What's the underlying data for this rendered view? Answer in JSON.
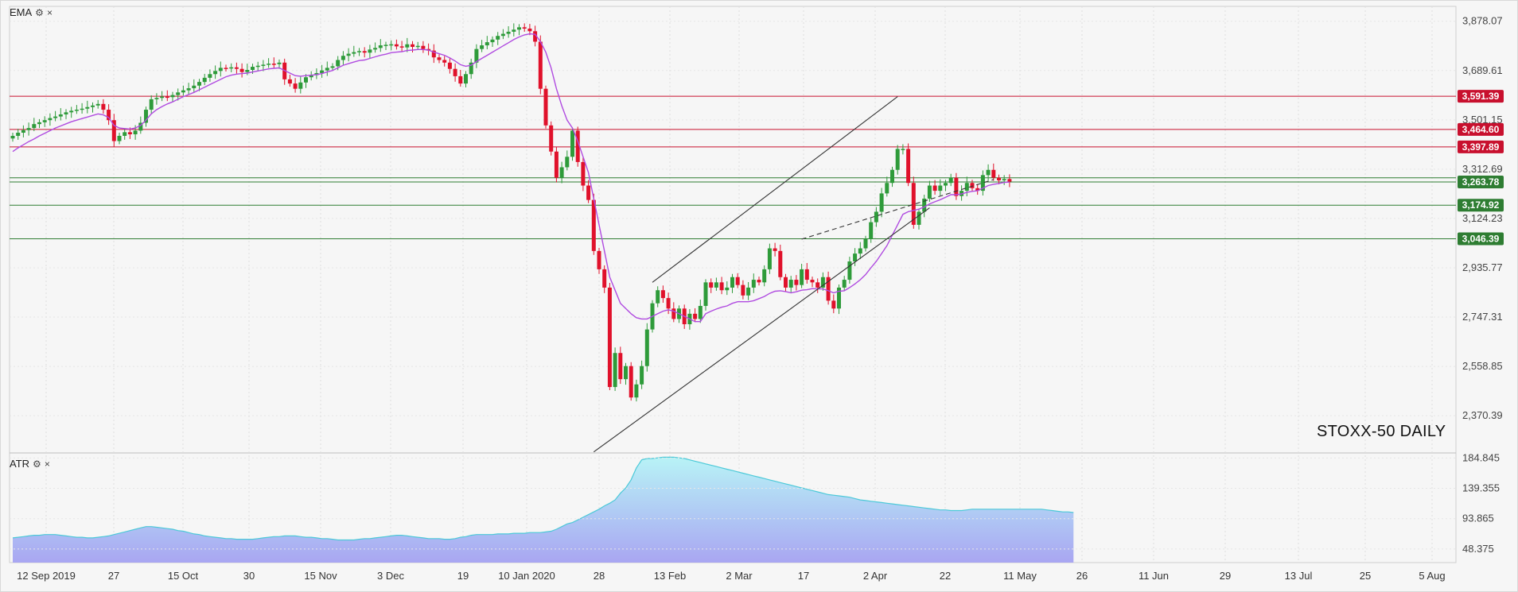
{
  "upper_indicator": {
    "label": "EMA",
    "settings_glyph": "⚙",
    "close_glyph": "×"
  },
  "lower_indicator": {
    "label": "ATR",
    "settings_glyph": "⚙",
    "close_glyph": "×"
  },
  "watermark": "STOXX-50 DAILY",
  "colors": {
    "up": "#2e9b3a",
    "down": "#e0112b",
    "ema": "#b04be0",
    "resistance": "#c8102e",
    "support": "#2e7d32",
    "atr_line": "#4cc9d8"
  },
  "chart_data": [
    {
      "type": "candlestick",
      "title": "STOXX-50 DAILY",
      "ylim": [
        2228,
        3935
      ],
      "y_ticks": [
        "3,878.07",
        "3,689.61",
        "3,501.15",
        "3,312.69",
        "3,124.23",
        "2,935.77",
        "2,747.31",
        "2,558.85",
        "2,370.39"
      ],
      "x_tick_labels": [
        "12 Sep 2019",
        "27",
        "15 Oct",
        "30",
        "15 Nov",
        "3 Dec",
        "19",
        "10 Jan 2020",
        "28",
        "13 Feb",
        "2 Mar",
        "17",
        "2 Apr",
        "22",
        "11 May",
        "26",
        "11 Jun",
        "29",
        "13 Jul",
        "25",
        "5 Aug"
      ],
      "horizontal_levels": [
        {
          "value": 3591.39,
          "label": "3,591.39",
          "kind": "resistance"
        },
        {
          "value": 3464.6,
          "label": "3,464.60",
          "kind": "resistance"
        },
        {
          "value": 3397.89,
          "label": "3,397.89",
          "kind": "resistance"
        },
        {
          "value": 3279.8,
          "label": "",
          "kind": "support"
        },
        {
          "value": 3263.78,
          "label": "3,263.78",
          "kind": "support"
        },
        {
          "value": 3174.92,
          "label": "3,174.92",
          "kind": "support"
        },
        {
          "value": 3046.39,
          "label": "3,046.39",
          "kind": "support"
        }
      ],
      "channel": {
        "upper": [
          [
            120,
            2880
          ],
          [
            166,
            3590
          ]
        ],
        "lower": [
          [
            109,
            2232
          ],
          [
            172,
            3165
          ]
        ],
        "inner_dashed": [
          [
            148,
            3045
          ],
          [
            184,
            3273
          ]
        ]
      },
      "closes": [
        3440,
        3452,
        3462,
        3470,
        3485,
        3492,
        3500,
        3508,
        3514,
        3522,
        3530,
        3536,
        3540,
        3544,
        3550,
        3556,
        3562,
        3540,
        3500,
        3420,
        3440,
        3454,
        3446,
        3460,
        3490,
        3540,
        3580,
        3585,
        3590,
        3588,
        3596,
        3606,
        3614,
        3622,
        3632,
        3646,
        3662,
        3676,
        3688,
        3700,
        3698,
        3702,
        3696,
        3684,
        3692,
        3704,
        3708,
        3712,
        3716,
        3714,
        3720,
        3656,
        3640,
        3620,
        3644,
        3664,
        3672,
        3680,
        3690,
        3700,
        3706,
        3730,
        3746,
        3754,
        3760,
        3764,
        3758,
        3770,
        3776,
        3786,
        3788,
        3790,
        3782,
        3778,
        3790,
        3780,
        3784,
        3772,
        3766,
        3740,
        3730,
        3720,
        3696,
        3668,
        3640,
        3676,
        3720,
        3772,
        3786,
        3798,
        3808,
        3822,
        3830,
        3838,
        3846,
        3855,
        3850,
        3840,
        3800,
        3620,
        3480,
        3380,
        3280,
        3320,
        3360,
        3460,
        3340,
        3250,
        3195,
        3000,
        2930,
        2860,
        2480,
        2610,
        2510,
        2560,
        2440,
        2490,
        2560,
        2700,
        2800,
        2850,
        2820,
        2780,
        2740,
        2780,
        2720,
        2760,
        2740,
        2790,
        2880,
        2860,
        2880,
        2850,
        2860,
        2900,
        2870,
        2830,
        2860,
        2890,
        2880,
        2930,
        3010,
        3000,
        2900,
        2860,
        2890,
        2870,
        2930,
        2890,
        2880,
        2860,
        2900,
        2810,
        2780,
        2860,
        2890,
        2960,
        2990,
        3010,
        3046,
        3110,
        3150,
        3220,
        3260,
        3310,
        3390,
        3390,
        3260,
        3100,
        3150,
        3200,
        3250,
        3230,
        3250,
        3260,
        3280,
        3210,
        3230,
        3260,
        3240,
        3230,
        3290,
        3310,
        3280,
        3270,
        3275,
        3265
      ],
      "ema": [
        3380,
        3394,
        3406,
        3418,
        3428,
        3440,
        3450,
        3460,
        3470,
        3478,
        3486,
        3494,
        3500,
        3506,
        3512,
        3518,
        3524,
        3520,
        3510,
        3480,
        3470,
        3468,
        3466,
        3470,
        3480,
        3500,
        3524,
        3540,
        3552,
        3562,
        3570,
        3580,
        3590,
        3598,
        3606,
        3616,
        3626,
        3636,
        3646,
        3656,
        3666,
        3672,
        3676,
        3678,
        3680,
        3684,
        3688,
        3692,
        3696,
        3698,
        3700,
        3690,
        3680,
        3670,
        3668,
        3670,
        3672,
        3674,
        3678,
        3684,
        3690,
        3700,
        3710,
        3716,
        3722,
        3728,
        3730,
        3736,
        3742,
        3748,
        3752,
        3758,
        3760,
        3762,
        3766,
        3768,
        3770,
        3770,
        3768,
        3760,
        3754,
        3748,
        3738,
        3726,
        3712,
        3706,
        3710,
        3724,
        3736,
        3748,
        3760,
        3772,
        3784,
        3796,
        3808,
        3818,
        3826,
        3830,
        3828,
        3800,
        3760,
        3700,
        3620,
        3555,
        3500,
        3470,
        3420,
        3360,
        3300,
        3200,
        3100,
        3000,
        2900,
        2850,
        2800,
        2780,
        2760,
        2745,
        2740,
        2740,
        2750,
        2760,
        2770,
        2775,
        2770,
        2760,
        2750,
        2740,
        2730,
        2730,
        2760,
        2770,
        2778,
        2785,
        2790,
        2800,
        2806,
        2806,
        2806,
        2810,
        2818,
        2826,
        2838,
        2846,
        2848,
        2845,
        2840,
        2844,
        2850,
        2852,
        2856,
        2855,
        2855,
        2848,
        2840,
        2846,
        2848,
        2860,
        2874,
        2890,
        2910,
        2936,
        2960,
        2990,
        3020,
        3060,
        3100,
        3140,
        3150,
        3155,
        3160,
        3168,
        3180,
        3188,
        3196,
        3205,
        3215,
        3215,
        3218,
        3224,
        3228,
        3230,
        3240,
        3250,
        3255,
        3258,
        3262,
        3263
      ],
      "atr": {
        "ylim": [
          28,
          190
        ],
        "y_ticks": [
          "184.845",
          "139.355",
          "93.865",
          "48.375"
        ],
        "values": [
          65,
          66,
          67,
          68,
          69,
          69,
          70,
          70,
          70,
          69,
          68,
          67,
          66,
          66,
          65,
          65,
          66,
          67,
          68,
          70,
          72,
          74,
          76,
          78,
          80,
          82,
          82,
          81,
          80,
          79,
          78,
          76,
          75,
          73,
          71,
          70,
          68,
          67,
          66,
          65,
          64,
          64,
          63,
          63,
          63,
          63,
          64,
          65,
          66,
          67,
          67,
          68,
          68,
          68,
          67,
          66,
          66,
          65,
          64,
          64,
          63,
          62,
          62,
          62,
          62,
          63,
          64,
          64,
          65,
          66,
          67,
          68,
          69,
          69,
          68,
          67,
          66,
          65,
          64,
          64,
          64,
          63,
          63,
          64,
          66,
          67,
          69,
          70,
          70,
          70,
          70,
          71,
          71,
          71,
          72,
          72,
          72,
          73,
          73,
          73,
          74,
          75,
          78,
          82,
          86,
          88,
          92,
          96,
          100,
          104,
          108,
          113,
          117,
          122,
          132,
          140,
          152,
          170,
          182,
          184,
          184,
          185,
          186,
          186,
          186,
          185,
          184,
          182,
          180,
          178,
          176,
          174,
          172,
          170,
          168,
          166,
          164,
          162,
          160,
          158,
          156,
          154,
          152,
          150,
          148,
          146,
          144,
          142,
          140,
          138,
          136,
          134,
          132,
          130,
          129,
          128,
          127,
          126,
          124,
          122,
          121,
          120,
          119,
          118,
          117,
          116,
          115,
          114,
          113,
          112,
          111,
          110,
          109,
          108,
          107,
          107,
          106,
          106,
          106,
          107,
          108,
          108,
          108,
          108,
          108,
          108,
          108,
          108,
          108,
          108,
          108,
          108,
          108,
          108,
          107,
          106,
          105,
          104,
          104,
          103
        ]
      }
    }
  ]
}
